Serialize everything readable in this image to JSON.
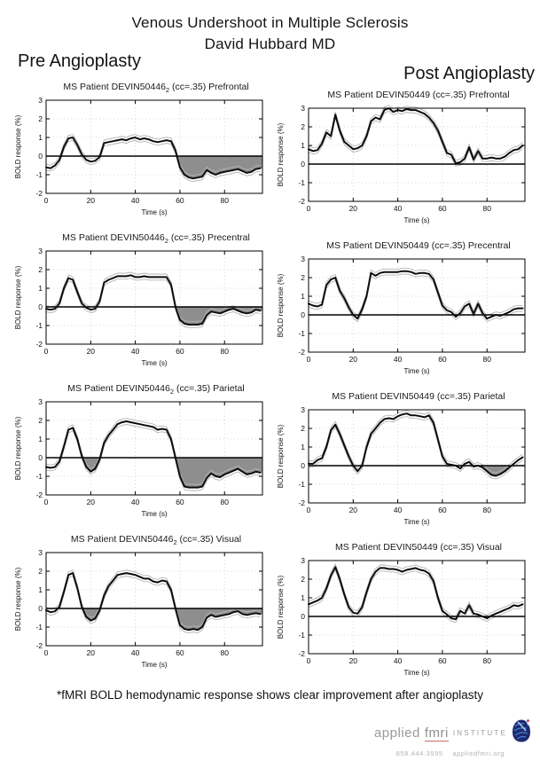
{
  "header": {
    "title_line1": "Venous Undershoot in Multiple Sclerosis",
    "title_line2": "David Hubbard MD",
    "left_label": "Pre Angioplasty",
    "right_label": "Post Angioplasty"
  },
  "caption": "*fMRI BOLD hemodynamic response shows clear improvement after angioplasty",
  "logo": {
    "brand": "applied",
    "fmri": "fmri",
    "institute": "INSTITUTE",
    "phone": "858.444.3595",
    "site": "appliedfmri.org",
    "icon": "brain-icon"
  },
  "colors": {
    "curve": "#0d0d0d",
    "undershoot_fill": "#8e8e8e",
    "confidence_band": "#b3b3b3",
    "logo_gray": "#9a9a9a",
    "logo_blue": "#24348f",
    "logo_red": "#c03a3a"
  },
  "chart_axes": {
    "xlabel": "Time (s)",
    "ylabel": "BOLD response (%)",
    "xlim": [
      0,
      97
    ],
    "ylim": [
      -2,
      3
    ],
    "xticks": [
      0,
      20,
      40,
      60,
      80
    ],
    "yticks": [
      -2,
      -1,
      0,
      1,
      2,
      3
    ],
    "grid": "dotted",
    "x_start": 0,
    "x_step": 2
  },
  "chart_data": [
    {
      "type": "line",
      "id": "pre-prefrontal",
      "group": "Pre Angioplasty",
      "title_prefix": "MS Patient DEVIN50446",
      "title_subscript": "2",
      "title_suffix": " (cc=.35) Prefrontal",
      "values": [
        -0.6,
        -0.65,
        -0.5,
        -0.2,
        0.5,
        0.95,
        1.0,
        0.6,
        0.1,
        -0.2,
        -0.3,
        -0.25,
        -0.05,
        0.7,
        0.75,
        0.8,
        0.85,
        0.9,
        0.85,
        0.95,
        1.0,
        0.9,
        0.95,
        0.9,
        0.8,
        0.75,
        0.8,
        0.85,
        0.8,
        0.3,
        -0.6,
        -1.0,
        -1.15,
        -1.2,
        -1.15,
        -1.1,
        -0.75,
        -0.9,
        -1.0,
        -0.9,
        -0.85,
        -0.8,
        -0.75,
        -0.7,
        -0.8,
        -0.9,
        -0.85,
        -0.7,
        -0.65
      ],
      "shade_regions": [
        [
          57,
          97
        ]
      ]
    },
    {
      "type": "line",
      "id": "post-prefrontal",
      "group": "Post Angioplasty",
      "title_prefix": "MS Patient DEVIN50449",
      "title_subscript": "",
      "title_suffix": " (cc=.35) Prefrontal",
      "values": [
        0.8,
        0.7,
        0.75,
        1.1,
        1.7,
        1.5,
        2.65,
        1.8,
        1.2,
        1.0,
        0.8,
        0.85,
        1.0,
        1.5,
        2.3,
        2.5,
        2.4,
        2.9,
        3.0,
        2.8,
        2.9,
        2.85,
        2.95,
        2.9,
        2.9,
        2.8,
        2.7,
        2.5,
        2.2,
        1.8,
        1.2,
        0.6,
        0.5,
        0.05,
        0.1,
        0.3,
        0.9,
        0.25,
        0.7,
        0.3,
        0.3,
        0.35,
        0.3,
        0.3,
        0.4,
        0.6,
        0.75,
        0.8,
        1.0
      ],
      "shade_regions": []
    },
    {
      "type": "line",
      "id": "pre-precentral",
      "group": "Pre Angioplasty",
      "title_prefix": "MS Patient DEVIN50446",
      "title_subscript": "2",
      "title_suffix": " (cc=.35) Precentral",
      "values": [
        -0.1,
        -0.15,
        -0.1,
        0.2,
        1.0,
        1.55,
        1.45,
        0.8,
        0.2,
        -0.05,
        -0.15,
        -0.1,
        0.3,
        1.3,
        1.45,
        1.55,
        1.65,
        1.65,
        1.65,
        1.7,
        1.6,
        1.6,
        1.65,
        1.6,
        1.6,
        1.6,
        1.6,
        1.6,
        1.2,
        0.0,
        -0.7,
        -0.9,
        -0.95,
        -0.95,
        -0.95,
        -0.9,
        -0.45,
        -0.25,
        -0.3,
        -0.35,
        -0.25,
        -0.15,
        -0.1,
        -0.2,
        -0.3,
        -0.35,
        -0.3,
        -0.15,
        -0.2
      ],
      "shade_regions": [
        [
          56,
          97
        ]
      ]
    },
    {
      "type": "line",
      "id": "post-precentral",
      "group": "Post Angioplasty",
      "title_prefix": "MS Patient DEVIN50449",
      "title_subscript": "",
      "title_suffix": " (cc=.35) Precentral",
      "values": [
        0.6,
        0.5,
        0.45,
        0.55,
        1.6,
        1.9,
        2.0,
        1.3,
        0.9,
        0.4,
        0.0,
        -0.2,
        0.3,
        1.0,
        2.25,
        2.1,
        2.25,
        2.3,
        2.3,
        2.3,
        2.3,
        2.35,
        2.35,
        2.3,
        2.2,
        2.25,
        2.25,
        2.2,
        1.9,
        1.2,
        0.5,
        0.25,
        0.15,
        -0.1,
        0.1,
        0.45,
        0.6,
        0.05,
        0.6,
        0.1,
        -0.2,
        -0.1,
        0.0,
        -0.05,
        0.05,
        0.15,
        0.3,
        0.35,
        0.35
      ],
      "shade_regions": []
    },
    {
      "type": "line",
      "id": "pre-parietal",
      "group": "Pre Angioplasty",
      "title_prefix": "MS Patient DEVIN50446",
      "title_subscript": "2",
      "title_suffix": " (cc=.35) Parietal",
      "values": [
        -0.5,
        -0.55,
        -0.5,
        -0.2,
        0.6,
        1.5,
        1.6,
        1.0,
        0.1,
        -0.5,
        -0.75,
        -0.6,
        -0.1,
        0.8,
        1.2,
        1.5,
        1.8,
        1.9,
        1.95,
        1.9,
        1.85,
        1.8,
        1.75,
        1.7,
        1.65,
        1.5,
        1.55,
        1.5,
        1.0,
        0.0,
        -1.0,
        -1.55,
        -1.6,
        -1.6,
        -1.6,
        -1.55,
        -1.1,
        -0.85,
        -1.0,
        -1.05,
        -0.9,
        -0.8,
        -0.7,
        -0.6,
        -0.75,
        -0.9,
        -0.85,
        -0.75,
        -0.8
      ],
      "shade_regions": [
        [
          15,
          25
        ],
        [
          56,
          97
        ]
      ]
    },
    {
      "type": "line",
      "id": "post-parietal",
      "group": "Post Angioplasty",
      "title_prefix": "MS Patient DEVIN50449",
      "title_subscript": "",
      "title_suffix": " (cc=.35) Parietal",
      "values": [
        0.1,
        0.1,
        0.3,
        0.4,
        1.0,
        1.9,
        2.2,
        1.7,
        1.1,
        0.5,
        0.0,
        -0.3,
        0.0,
        1.0,
        1.7,
        2.0,
        2.3,
        2.5,
        2.55,
        2.5,
        2.65,
        2.75,
        2.8,
        2.7,
        2.7,
        2.65,
        2.6,
        2.7,
        2.3,
        1.4,
        0.5,
        0.1,
        0.05,
        0.0,
        -0.15,
        0.1,
        0.2,
        -0.05,
        0.0,
        -0.1,
        -0.3,
        -0.5,
        -0.55,
        -0.45,
        -0.3,
        -0.1,
        0.1,
        0.3,
        0.45
      ],
      "shade_regions": [
        [
          76,
          91
        ]
      ]
    },
    {
      "type": "line",
      "id": "pre-visual",
      "group": "Pre Angioplasty",
      "title_prefix": "MS Patient DEVIN50446",
      "title_subscript": "2",
      "title_suffix": " (cc=.35) Visual",
      "values": [
        -0.1,
        -0.2,
        -0.15,
        0.1,
        0.9,
        1.8,
        1.9,
        1.1,
        0.1,
        -0.45,
        -0.65,
        -0.55,
        -0.1,
        0.7,
        1.2,
        1.5,
        1.8,
        1.85,
        1.9,
        1.85,
        1.8,
        1.7,
        1.6,
        1.6,
        1.45,
        1.4,
        1.5,
        1.45,
        1.0,
        0.0,
        -0.9,
        -1.1,
        -1.15,
        -1.1,
        -1.15,
        -1.0,
        -0.5,
        -0.35,
        -0.45,
        -0.4,
        -0.35,
        -0.3,
        -0.2,
        -0.15,
        -0.3,
        -0.35,
        -0.3,
        -0.25,
        -0.3
      ],
      "shade_regions": [
        [
          15,
          25
        ],
        [
          56,
          97
        ]
      ]
    },
    {
      "type": "line",
      "id": "post-visual",
      "group": "Post Angioplasty",
      "title_prefix": "MS Patient DEVIN50449",
      "title_subscript": "",
      "title_suffix": " (cc=.35) Visual",
      "values": [
        0.65,
        0.75,
        0.85,
        1.0,
        1.5,
        2.2,
        2.65,
        2.0,
        1.2,
        0.5,
        0.2,
        0.15,
        0.5,
        1.3,
        2.0,
        2.4,
        2.6,
        2.6,
        2.55,
        2.55,
        2.5,
        2.4,
        2.5,
        2.55,
        2.6,
        2.5,
        2.45,
        2.3,
        1.9,
        1.0,
        0.3,
        0.1,
        -0.1,
        -0.15,
        0.3,
        0.15,
        0.6,
        0.15,
        0.1,
        0.0,
        -0.1,
        0.05,
        0.15,
        0.25,
        0.35,
        0.45,
        0.6,
        0.55,
        0.65
      ],
      "shade_regions": []
    }
  ]
}
